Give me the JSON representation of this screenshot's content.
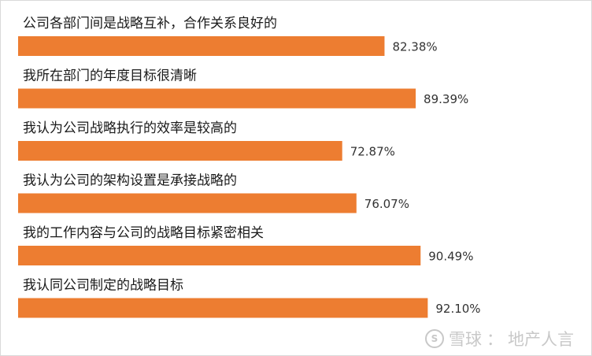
{
  "chart_data": {
    "type": "bar",
    "orientation": "horizontal",
    "categories": [
      "公司各部门间是战略互补，合作关系良好的",
      "我所在部门的年度目标很清晰",
      "我认为公司战略执行的效率是较高的",
      "我认为公司的架构设置是承接战略的",
      "我的工作内容与公司的战略目标紧密相关",
      "我认同公司制定的战略目标"
    ],
    "values": [
      82.38,
      89.39,
      72.87,
      76.07,
      90.49,
      92.1
    ],
    "value_labels": [
      "82.38%",
      "89.39%",
      "72.87%",
      "76.07%",
      "90.49%",
      "92.10%"
    ],
    "bar_color": "#ed7d31",
    "xlim": [
      0,
      100
    ],
    "grid": false,
    "legend": "none"
  },
  "watermark": {
    "brand": "雪球",
    "separator": "：",
    "author": "地产人言"
  }
}
